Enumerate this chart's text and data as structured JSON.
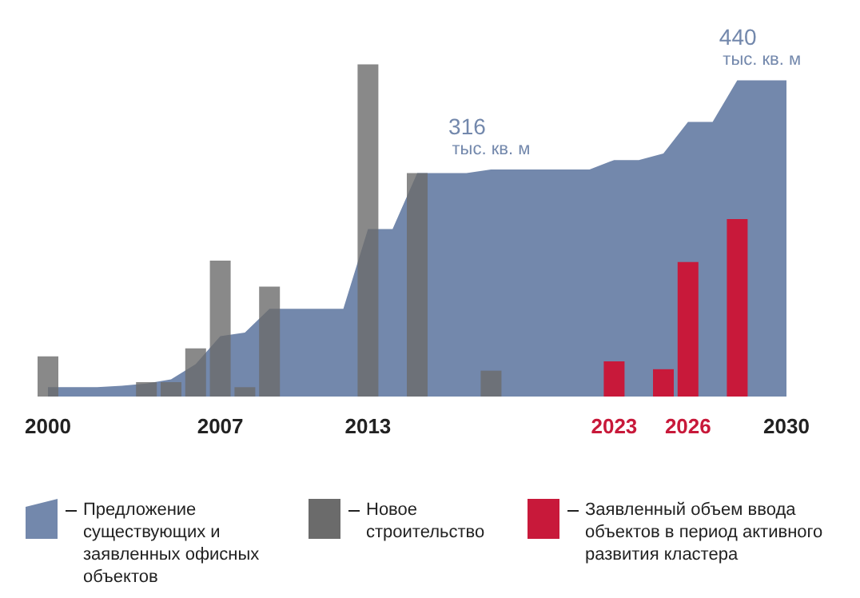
{
  "chart_data": {
    "type": "bar",
    "xlim": [
      2000,
      2030
    ],
    "xticks": [
      2000,
      2007,
      2013,
      2023,
      2026,
      2030
    ],
    "tick_labels": "x",
    "grid": false,
    "legend": "bottom",
    "series": [
      {
        "name": "Предложение существующих и заявленных офисных объектов",
        "type": "area",
        "color": "#7388ac",
        "x": [
          2000,
          2001,
          2002,
          2003,
          2004,
          2005,
          2006,
          2007,
          2008,
          2009,
          2010,
          2011,
          2012,
          2013,
          2014,
          2015,
          2016,
          2017,
          2018,
          2019,
          2020,
          2021,
          2022,
          2023,
          2024,
          2025,
          2026,
          2027,
          2028,
          2029,
          2030
        ],
        "values": [
          13,
          13,
          13,
          15,
          18,
          24,
          45,
          84,
          89,
          122,
          122,
          122,
          122,
          233,
          233,
          311,
          311,
          311,
          316,
          316,
          316,
          316,
          316,
          329,
          329,
          338,
          382,
          382,
          440,
          440,
          440
        ],
        "value_labels": [
          null,
          null,
          null,
          null,
          null,
          null,
          null,
          null,
          null,
          null,
          null,
          null,
          null,
          null,
          null,
          null,
          null,
          null,
          "316\nтыс. кв. м",
          null,
          null,
          null,
          null,
          null,
          null,
          null,
          null,
          null,
          null,
          "440\nтыс. кв. м",
          null
        ]
      },
      {
        "name": "Новое строительство",
        "color": "#6b6b6b",
        "x": [
          2000,
          2004,
          2005,
          2006,
          2007,
          2008,
          2009,
          2013,
          2015,
          2018
        ],
        "values": [
          56,
          20,
          20,
          67,
          189,
          13,
          153,
          462,
          311,
          36
        ]
      },
      {
        "name": "Заявленный объем ввода объектов в период активного развития кластера",
        "color": "#c8193a",
        "x": [
          2023,
          2025,
          2026,
          2028
        ],
        "values": [
          49,
          38,
          187,
          247
        ]
      }
    ]
  }
}
